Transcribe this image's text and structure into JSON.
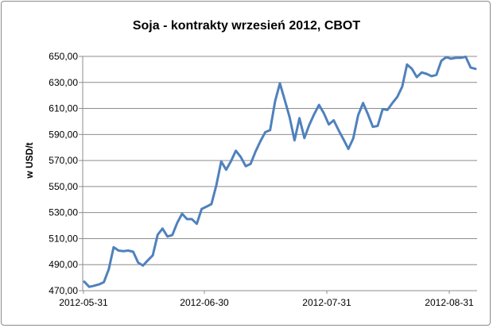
{
  "chart_data": {
    "type": "line",
    "title": "Soja - kontrakty wrzesień 2012, CBOT",
    "xlabel": "",
    "ylabel": "w USD/t",
    "ylim": [
      470,
      650
    ],
    "yticks": [
      "470,00",
      "490,00",
      "510,00",
      "530,00",
      "550,00",
      "570,00",
      "590,00",
      "610,00",
      "630,00",
      "650,00"
    ],
    "xtick_labels": [
      "2012-05-31",
      "2012-06-30",
      "2012-07-31",
      "2012-08-31"
    ],
    "grid": "horizontal",
    "legend": "none",
    "line_color": "#4f81bd",
    "series": [
      {
        "values": [
          476.9,
          472.9,
          473.8,
          474.8,
          476.5,
          486.5,
          503.4,
          500.8,
          500.4,
          500.8,
          499.9,
          491.6,
          489.3,
          493.3,
          497.1,
          513.0,
          517.7,
          511.6,
          512.8,
          522.1,
          529.1,
          525.0,
          525.0,
          521.4,
          532.8,
          534.6,
          536.5,
          551.1,
          569.3,
          562.9,
          569.5,
          577.5,
          572.7,
          565.7,
          567.4,
          576.8,
          584.7,
          591.8,
          593.3,
          615.4,
          629.3,
          616.5,
          603.1,
          585.5,
          602.5,
          587.3,
          597.3,
          605.6,
          612.7,
          606.2,
          597.7,
          600.9,
          593.3,
          586.2,
          578.9,
          587.1,
          604.8,
          614.2,
          605.6,
          595.9,
          596.6,
          609.5,
          608.9,
          614.2,
          618.8,
          626.7,
          643.8,
          640.5,
          634.1,
          637.7,
          636.6,
          634.8,
          635.8,
          646.6,
          649.4,
          648.2,
          648.9,
          648.9,
          649.7,
          641.4,
          640.4
        ]
      }
    ]
  }
}
